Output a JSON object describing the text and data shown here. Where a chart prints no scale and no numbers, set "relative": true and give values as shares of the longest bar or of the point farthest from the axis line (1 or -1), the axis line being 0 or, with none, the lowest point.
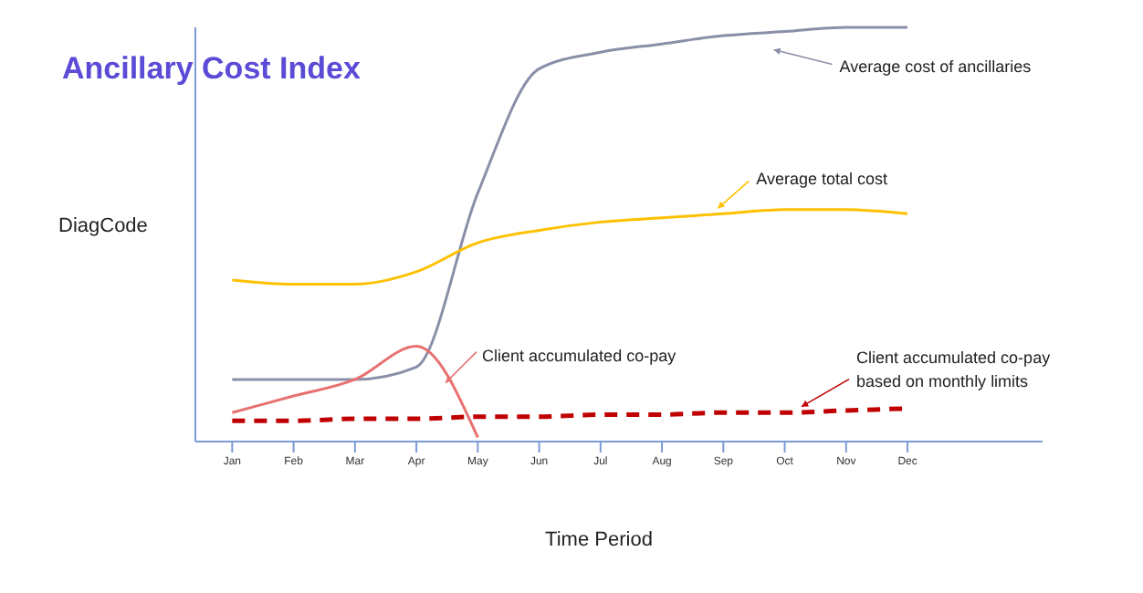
{
  "chart_data": {
    "type": "line",
    "title": "Ancillary Cost Index",
    "ylabel": "DiagCode",
    "xlabel": "Time Period",
    "relative": true,
    "marker": "none",
    "categories": [
      "Jan",
      "Feb",
      "Mar",
      "Apr",
      "May",
      "Jun",
      "Jul",
      "Aug",
      "Sep",
      "Oct",
      "Nov",
      "Dec"
    ],
    "series": [
      {
        "name": "Average cost of ancillaries",
        "color": "#8a8fa8",
        "values": [
          0.15,
          0.15,
          0.15,
          0.18,
          0.6,
          0.9,
          0.94,
          0.96,
          0.98,
          0.99,
          1,
          1
        ]
      },
      {
        "name": "Average total cost",
        "color": "#ffc000",
        "values": [
          0.39,
          0.38,
          0.38,
          0.41,
          0.48,
          0.51,
          0.53,
          0.54,
          0.55,
          0.56,
          0.56,
          0.55
        ]
      },
      {
        "name": "Client accumulated co-pay",
        "color": "#e87070",
        "values": [
          0.07,
          0.11,
          0.15,
          0.23,
          0.01,
          null,
          null,
          null,
          null,
          null,
          null,
          null
        ]
      },
      {
        "name": "Client accumulated co-pay based on monthly limits",
        "color": "#c00000",
        "line_style": "dashed",
        "values": [
          0.05,
          0.05,
          0.055,
          0.055,
          0.06,
          0.06,
          0.065,
          0.065,
          0.07,
          0.07,
          0.075,
          0.08
        ]
      }
    ]
  }
}
